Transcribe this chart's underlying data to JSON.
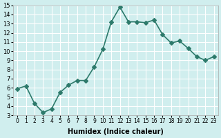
{
  "x": [
    0,
    1,
    2,
    3,
    4,
    5,
    6,
    7,
    8,
    9,
    10,
    11,
    12,
    13,
    14,
    15,
    16,
    17,
    18,
    19,
    20,
    21,
    22,
    23
  ],
  "y": [
    5.9,
    6.2,
    4.3,
    3.3,
    3.7,
    5.5,
    6.3,
    6.8,
    6.8,
    8.3,
    10.2,
    13.2,
    14.8,
    13.2,
    13.2,
    13.1,
    13.4,
    11.8,
    10.9,
    11.1,
    10.3,
    9.4,
    9.0,
    9.4
  ],
  "xlabel": "Humidex (Indice chaleur)",
  "xlim_min": -0.5,
  "xlim_max": 23.5,
  "ylim_min": 3,
  "ylim_max": 15,
  "yticks": [
    3,
    4,
    5,
    6,
    7,
    8,
    9,
    10,
    11,
    12,
    13,
    14,
    15
  ],
  "xticks": [
    0,
    1,
    2,
    3,
    4,
    5,
    6,
    7,
    8,
    9,
    10,
    11,
    12,
    13,
    14,
    15,
    16,
    17,
    18,
    19,
    20,
    21,
    22,
    23
  ],
  "xtick_labels": [
    "0",
    "1",
    "2",
    "3",
    "4",
    "5",
    "6",
    "7",
    "8",
    "9",
    "10",
    "11",
    "12",
    "13",
    "14",
    "15",
    "16",
    "17",
    "18",
    "19",
    "20",
    "21",
    "22",
    "23"
  ],
  "line_color": "#2d7a6b",
  "bg_color": "#d0eeee",
  "grid_color": "#ffffff",
  "marker": "D",
  "markersize": 3,
  "linewidth": 1.2
}
